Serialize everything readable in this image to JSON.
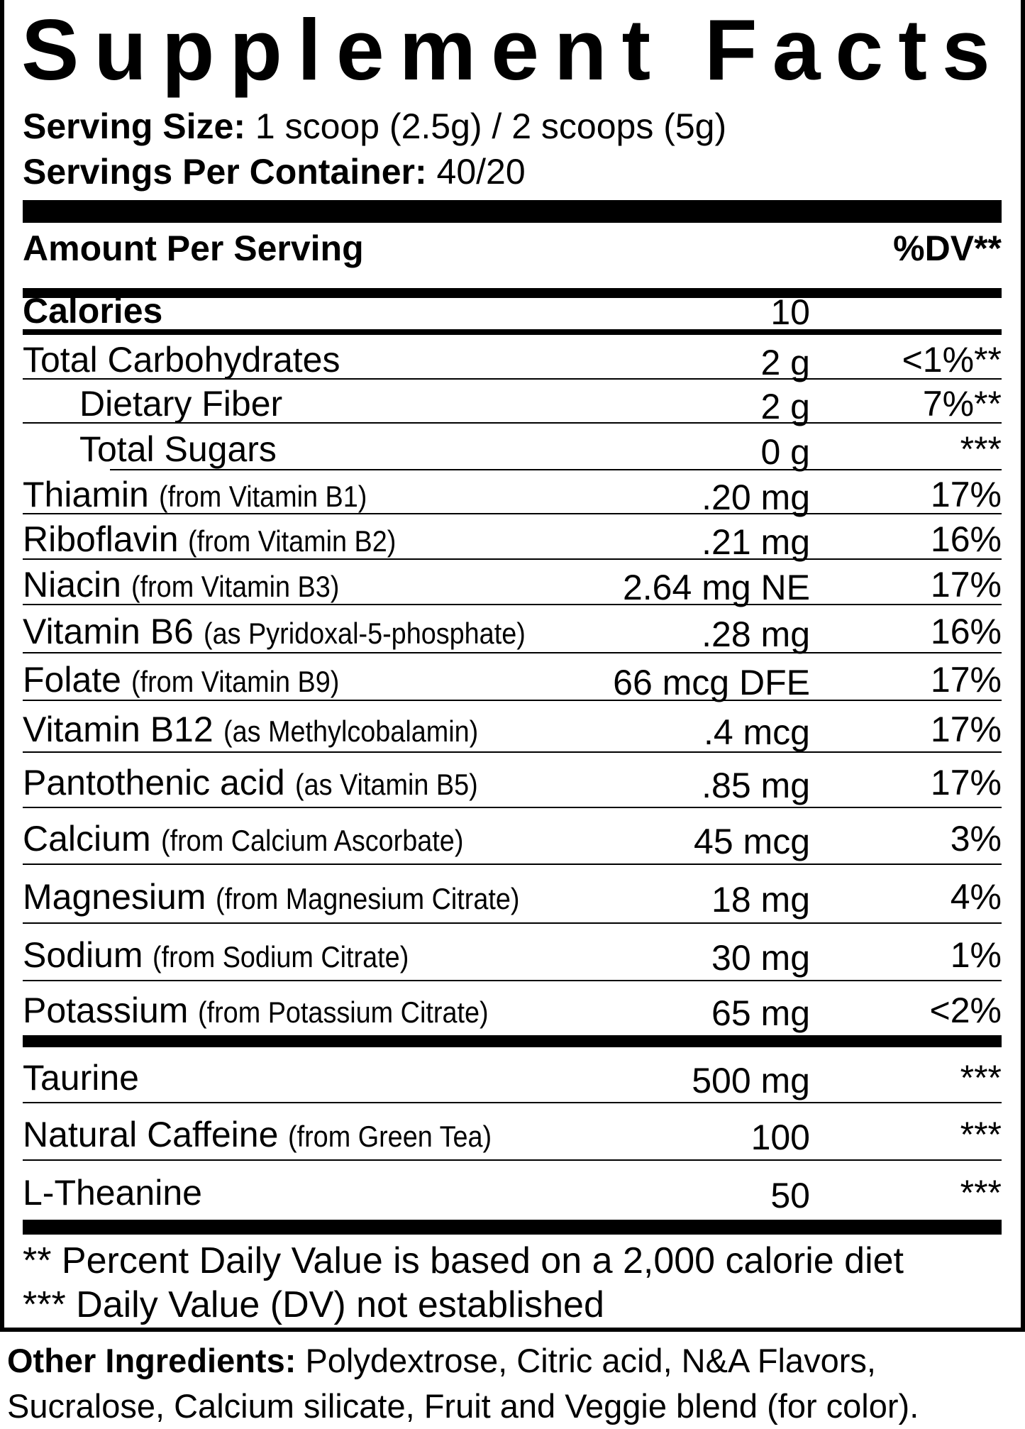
{
  "title": "Supplement Facts",
  "serving_size": {
    "label": "Serving Size:",
    "value": "1 scoop (2.5g) / 2 scoops (5g)"
  },
  "servings_per_container": {
    "label": "Servings Per Container:",
    "value": "40/20"
  },
  "header": {
    "amount_per_serving": "Amount Per Serving",
    "dv": "%DV**"
  },
  "calories": {
    "label": "Calories",
    "value": "10"
  },
  "rows": [
    {
      "name": "Total Carbohydrates",
      "source": "",
      "amount": "2 g",
      "dv": "<1%**"
    },
    {
      "name": "Dietary Fiber",
      "source": "",
      "amount": "2 g",
      "dv": "7%**"
    },
    {
      "name": "Total Sugars",
      "source": "",
      "amount": "0 g",
      "dv": "***"
    },
    {
      "name": "Thiamin",
      "source": "(from Vitamin B1)",
      "amount": ".20 mg",
      "dv": "17%"
    },
    {
      "name": "Riboflavin",
      "source": "(from Vitamin B2)",
      "amount": ".21 mg",
      "dv": "16%"
    },
    {
      "name": "Niacin",
      "source": "(from Vitamin B3)",
      "amount": "2.64 mg NE",
      "dv": "17%"
    },
    {
      "name": "Vitamin B6",
      "source": "(as Pyridoxal-5-phosphate)",
      "amount": ".28 mg",
      "dv": "16%"
    },
    {
      "name": "Folate",
      "source": "(from Vitamin B9)",
      "amount": "66 mcg DFE",
      "dv": "17%"
    },
    {
      "name": "Vitamin B12",
      "source": "(as Methylcobalamin)",
      "amount": ".4 mcg",
      "dv": "17%"
    },
    {
      "name": "Pantothenic acid",
      "source": "(as Vitamin B5)",
      "amount": ".85 mg",
      "dv": "17%"
    },
    {
      "name": "Calcium",
      "source": "(from Calcium Ascorbate)",
      "amount": "45 mcg",
      "dv": "3%"
    },
    {
      "name": "Magnesium",
      "source": "(from Magnesium Citrate)",
      "amount": "18 mg",
      "dv": "4%"
    },
    {
      "name": "Sodium",
      "source": "(from Sodium Citrate)",
      "amount": "30 mg",
      "dv": "1%"
    },
    {
      "name": "Potassium",
      "source": "(from Potassium Citrate)",
      "amount": "65 mg",
      "dv": "<2%"
    },
    {
      "name": "Taurine",
      "source": "",
      "amount": "500 mg",
      "dv": "***"
    },
    {
      "name": "Natural Caffeine",
      "source": "(from Green Tea)",
      "amount": "100",
      "dv": "***"
    },
    {
      "name": "L-Theanine",
      "source": "",
      "amount": "50",
      "dv": "***"
    }
  ],
  "footnotes": [
    "** Percent Daily Value is based on a 2,000 calorie diet",
    "*** Daily Value (DV) not established"
  ],
  "other_ingredients": {
    "label": "Other Ingredients:",
    "line1": "Polydextrose, Citric acid, N&A Flavors,",
    "line2": "Sucralose, Calcium silicate, Fruit and Veggie blend (for color)."
  }
}
